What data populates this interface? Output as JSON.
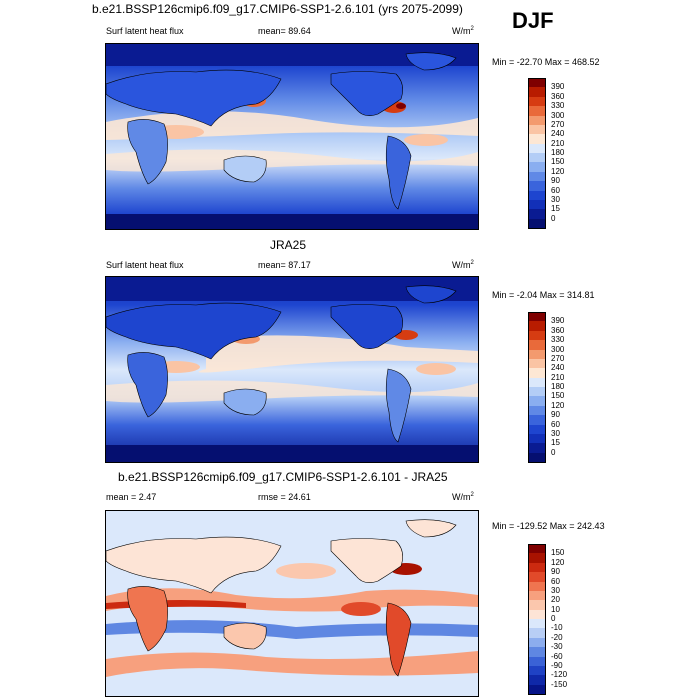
{
  "season": "DJF",
  "panels": [
    {
      "title": "b.e21.BSSP126cmip6.f09_g17.CMIP6-SSP1-2.6.101 (yrs 2075-2099)",
      "left_label": "Surf latent heat flux",
      "mean_label": "mean=  89.64",
      "units": "W/m",
      "units_exp": "2",
      "minmax": "Min = -22.70 Max = 468.52",
      "colorbar_labels": [
        "390",
        "360",
        "330",
        "300",
        "270",
        "240",
        "210",
        "180",
        "150",
        "120",
        "90",
        "60",
        "30",
        "15",
        "0"
      ],
      "colors": [
        "#7f0000",
        "#b81c00",
        "#d63c12",
        "#e96a3a",
        "#f39a6e",
        "#fac4a4",
        "#fde7d4",
        "#dbe8fb",
        "#b3cdf6",
        "#8aaef0",
        "#6089e6",
        "#3a64dc",
        "#1e45cf",
        "#1230b8",
        "#0a1b92",
        "#050f70"
      ]
    },
    {
      "title": "JRA25",
      "left_label": "Surf latent heat flux",
      "mean_label": "mean=  87.17",
      "units": "W/m",
      "units_exp": "2",
      "minmax": "Min =  -2.04 Max = 314.81",
      "colorbar_labels": [
        "390",
        "360",
        "330",
        "300",
        "270",
        "240",
        "210",
        "180",
        "150",
        "120",
        "90",
        "60",
        "30",
        "15",
        "0"
      ],
      "colors": [
        "#7f0000",
        "#b81c00",
        "#d63c12",
        "#e96a3a",
        "#f39a6e",
        "#fac4a4",
        "#fde7d4",
        "#dbe8fb",
        "#b3cdf6",
        "#8aaef0",
        "#6089e6",
        "#3a64dc",
        "#1e45cf",
        "#1230b8",
        "#0a1b92",
        "#050f70"
      ]
    },
    {
      "title": "b.e21.BSSP126cmip6.f09_g17.CMIP6-SSP1-2.6.101 - JRA25",
      "left_label": "mean =   2.47",
      "mean_label": "rmse =  24.61",
      "units": "W/m",
      "units_exp": "2",
      "minmax": "Min = -129.52 Max = 242.43",
      "colorbar_labels": [
        "150",
        "120",
        "90",
        "60",
        "30",
        "20",
        "10",
        "0",
        "-10",
        "-20",
        "-30",
        "-60",
        "-90",
        "-120",
        "-150"
      ],
      "colors": [
        "#7f0000",
        "#a81200",
        "#cc2a10",
        "#e14a2a",
        "#ef7550",
        "#f7a07e",
        "#fbc7ad",
        "#fde4d6",
        "#dbe8fb",
        "#b8cef5",
        "#8cadee",
        "#5f87e2",
        "#3a62d6",
        "#1f42c4",
        "#0f28a8",
        "#061488"
      ]
    }
  ]
}
